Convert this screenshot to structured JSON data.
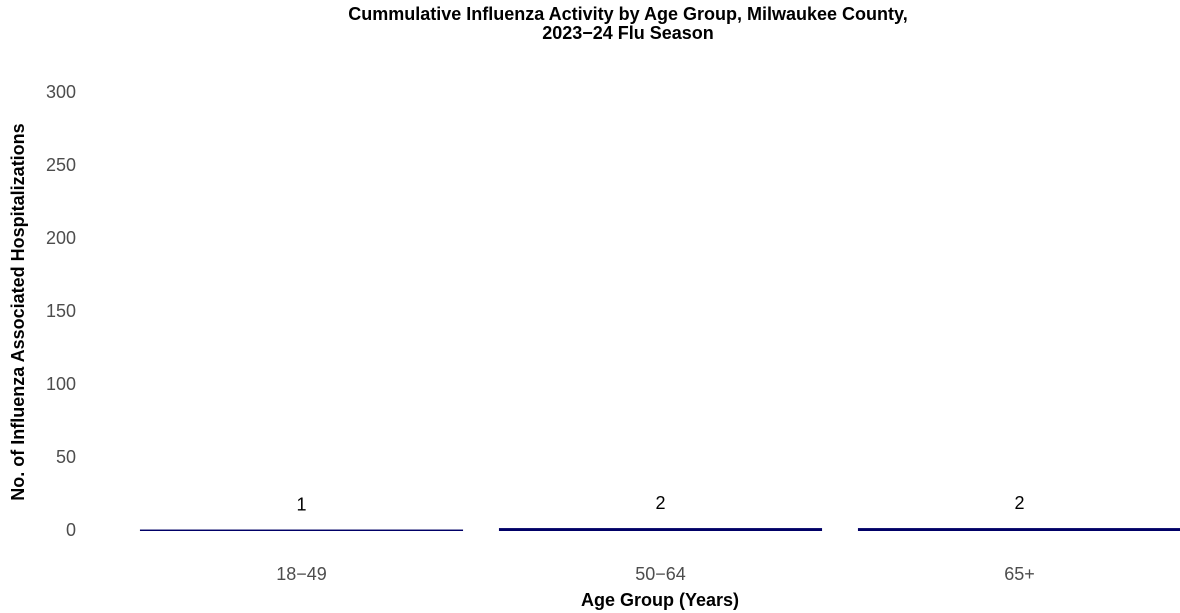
{
  "chart_data": {
    "type": "bar",
    "title": "Cummulative Influenza Activity by Age Group, Milwaukee County,\n2023−24 Flu Season",
    "x_label": "Age Group (Years)",
    "y_label": "No. of Influenza Associated Hospitalizations",
    "categories": [
      "18−49",
      "50−64",
      "65+"
    ],
    "values": [
      1,
      2,
      2
    ],
    "color": "#000066",
    "ylim": [
      0,
      300
    ],
    "yticks": [
      0,
      50,
      100,
      150,
      200,
      250,
      300
    ],
    "grid": false
  }
}
